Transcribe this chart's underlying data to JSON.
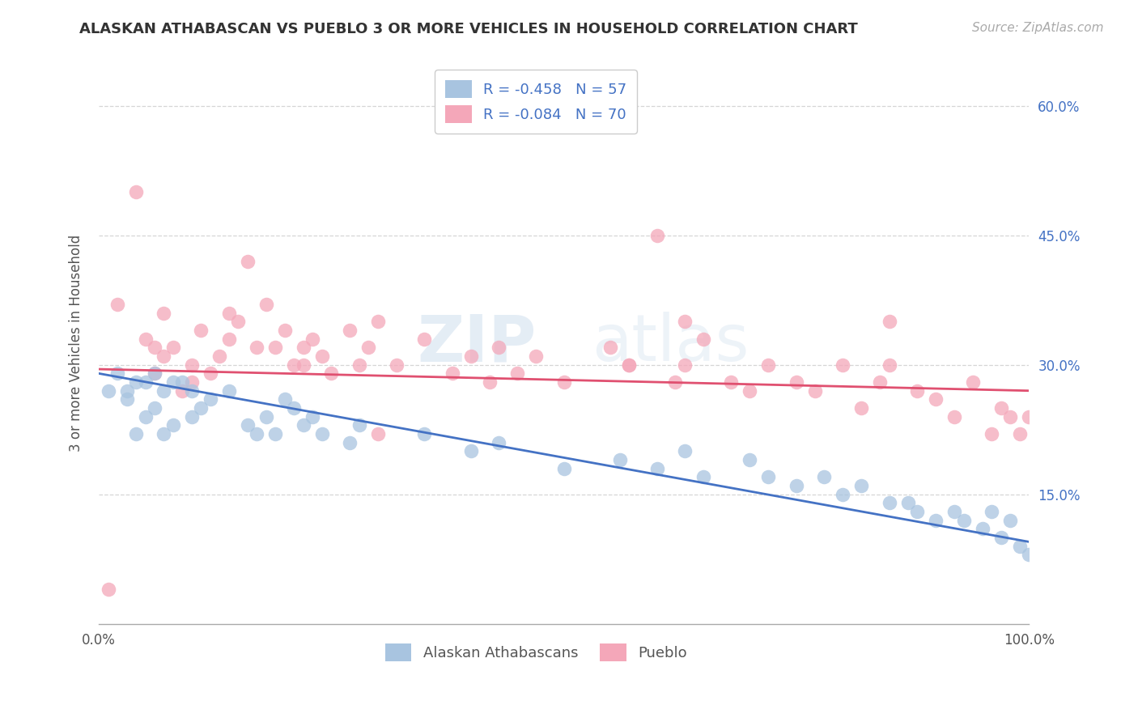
{
  "title": "ALASKAN ATHABASCAN VS PUEBLO 3 OR MORE VEHICLES IN HOUSEHOLD CORRELATION CHART",
  "source": "Source: ZipAtlas.com",
  "ylabel": "3 or more Vehicles in Household",
  "r_athabascan": -0.458,
  "n_athabascan": 57,
  "r_pueblo": -0.084,
  "n_pueblo": 70,
  "xlim": [
    0.0,
    1.0
  ],
  "ylim": [
    0.0,
    0.65
  ],
  "x_tick_positions": [
    0.0,
    1.0
  ],
  "x_tick_labels": [
    "0.0%",
    "100.0%"
  ],
  "y_tick_positions": [
    0.15,
    0.3,
    0.45,
    0.6
  ],
  "y_tick_labels": [
    "15.0%",
    "30.0%",
    "45.0%",
    "60.0%"
  ],
  "color_athabascan": "#a8c4e0",
  "color_pueblo": "#f4a7b9",
  "line_color_athabascan": "#4472c4",
  "line_color_pueblo": "#e05070",
  "legend_label_athabascan": "Alaskan Athabascans",
  "legend_label_pueblo": "Pueblo",
  "background_color": "#ffffff",
  "grid_color": "#cccccc",
  "athabascan_x": [
    0.01,
    0.02,
    0.03,
    0.03,
    0.04,
    0.04,
    0.05,
    0.05,
    0.06,
    0.06,
    0.07,
    0.07,
    0.08,
    0.08,
    0.09,
    0.1,
    0.1,
    0.11,
    0.12,
    0.14,
    0.16,
    0.17,
    0.18,
    0.19,
    0.2,
    0.21,
    0.22,
    0.23,
    0.24,
    0.27,
    0.28,
    0.35,
    0.4,
    0.43,
    0.5,
    0.56,
    0.6,
    0.63,
    0.65,
    0.7,
    0.72,
    0.75,
    0.78,
    0.8,
    0.82,
    0.85,
    0.87,
    0.88,
    0.9,
    0.92,
    0.93,
    0.95,
    0.96,
    0.97,
    0.98,
    0.99,
    1.0
  ],
  "athabascan_y": [
    0.27,
    0.29,
    0.27,
    0.26,
    0.28,
    0.22,
    0.28,
    0.24,
    0.29,
    0.25,
    0.27,
    0.22,
    0.28,
    0.23,
    0.28,
    0.27,
    0.24,
    0.25,
    0.26,
    0.27,
    0.23,
    0.22,
    0.24,
    0.22,
    0.26,
    0.25,
    0.23,
    0.24,
    0.22,
    0.21,
    0.23,
    0.22,
    0.2,
    0.21,
    0.18,
    0.19,
    0.18,
    0.2,
    0.17,
    0.19,
    0.17,
    0.16,
    0.17,
    0.15,
    0.16,
    0.14,
    0.14,
    0.13,
    0.12,
    0.13,
    0.12,
    0.11,
    0.13,
    0.1,
    0.12,
    0.09,
    0.08
  ],
  "pueblo_x": [
    0.01,
    0.02,
    0.04,
    0.05,
    0.06,
    0.06,
    0.07,
    0.07,
    0.08,
    0.09,
    0.1,
    0.1,
    0.11,
    0.12,
    0.13,
    0.14,
    0.14,
    0.15,
    0.16,
    0.17,
    0.18,
    0.19,
    0.2,
    0.21,
    0.22,
    0.23,
    0.24,
    0.25,
    0.27,
    0.28,
    0.29,
    0.3,
    0.32,
    0.35,
    0.38,
    0.4,
    0.42,
    0.43,
    0.45,
    0.47,
    0.5,
    0.55,
    0.57,
    0.6,
    0.62,
    0.63,
    0.65,
    0.68,
    0.7,
    0.72,
    0.75,
    0.77,
    0.8,
    0.82,
    0.84,
    0.85,
    0.88,
    0.9,
    0.92,
    0.94,
    0.96,
    0.97,
    0.98,
    0.99,
    1.0,
    0.57,
    0.3,
    0.22,
    0.63,
    0.85
  ],
  "pueblo_y": [
    0.04,
    0.37,
    0.5,
    0.33,
    0.32,
    0.29,
    0.36,
    0.31,
    0.32,
    0.27,
    0.3,
    0.28,
    0.34,
    0.29,
    0.31,
    0.36,
    0.33,
    0.35,
    0.42,
    0.32,
    0.37,
    0.32,
    0.34,
    0.3,
    0.32,
    0.33,
    0.31,
    0.29,
    0.34,
    0.3,
    0.32,
    0.35,
    0.3,
    0.33,
    0.29,
    0.31,
    0.28,
    0.32,
    0.29,
    0.31,
    0.28,
    0.32,
    0.3,
    0.45,
    0.28,
    0.3,
    0.33,
    0.28,
    0.27,
    0.3,
    0.28,
    0.27,
    0.3,
    0.25,
    0.28,
    0.3,
    0.27,
    0.26,
    0.24,
    0.28,
    0.22,
    0.25,
    0.24,
    0.22,
    0.24,
    0.3,
    0.22,
    0.3,
    0.35,
    0.35
  ]
}
